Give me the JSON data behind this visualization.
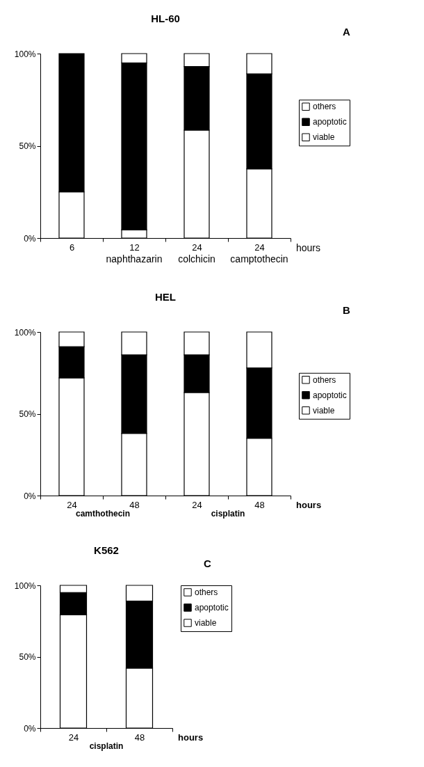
{
  "chart_data": [
    {
      "type": "bar",
      "title": "HL-60",
      "stacked": true,
      "categories": [
        "6",
        "12",
        "24",
        "24"
      ],
      "xlabel": "hours",
      "series": [
        {
          "name": "viable",
          "color": "#ffffff",
          "values": [
            25,
            4.5,
            58.5,
            37.5
          ]
        },
        {
          "name": "apoptotic",
          "color": "#000000",
          "values": [
            75,
            90.5,
            34.5,
            51.5
          ]
        },
        {
          "name": "others",
          "color": "#ffffff",
          "values": [
            0,
            5,
            7,
            11
          ]
        }
      ],
      "ylim": [
        0,
        100
      ],
      "yticks": [
        {
          "value": 0,
          "label": "0%"
        },
        {
          "value": 50,
          "label": "50%"
        },
        {
          "value": 100,
          "label": "100%"
        }
      ],
      "grid": false,
      "legend": "right",
      "annotations": [
        "A",
        "naphthazarin",
        "colchicin",
        "camptothecin"
      ]
    },
    {
      "type": "bar",
      "title": "HEL",
      "stacked": true,
      "categories": [
        "24",
        "48",
        "24",
        "48"
      ],
      "xlabel": "hours",
      "series": [
        {
          "name": "viable",
          "color": "#ffffff",
          "values": [
            72,
            38,
            63,
            35
          ]
        },
        {
          "name": "apoptotic",
          "color": "#000000",
          "values": [
            19,
            48,
            23,
            43
          ]
        },
        {
          "name": "others",
          "color": "#ffffff",
          "values": [
            9,
            14,
            14,
            22
          ]
        }
      ],
      "ylim": [
        0,
        100
      ],
      "yticks": [
        {
          "value": 0,
          "label": "0%"
        },
        {
          "value": 50,
          "label": "50%"
        },
        {
          "value": 100,
          "label": "100%"
        }
      ],
      "grid": false,
      "legend": "right",
      "annotations": [
        "B",
        "camthothecin",
        "cisplatin"
      ]
    },
    {
      "type": "bar",
      "title": "K562",
      "stacked": true,
      "categories": [
        "24",
        "48"
      ],
      "xlabel": "hours",
      "series": [
        {
          "name": "viable",
          "color": "#ffffff",
          "values": [
            79.5,
            42
          ]
        },
        {
          "name": "apoptotic",
          "color": "#000000",
          "values": [
            15.5,
            47
          ]
        },
        {
          "name": "others",
          "color": "#ffffff",
          "values": [
            5,
            11
          ]
        }
      ],
      "ylim": [
        0,
        100
      ],
      "yticks": [
        {
          "value": 0,
          "label": "0%"
        },
        {
          "value": 50,
          "label": "50%"
        },
        {
          "value": 100,
          "label": "100%"
        }
      ],
      "grid": false,
      "legend": "right",
      "annotations": [
        "C",
        "cisplatin"
      ]
    }
  ]
}
